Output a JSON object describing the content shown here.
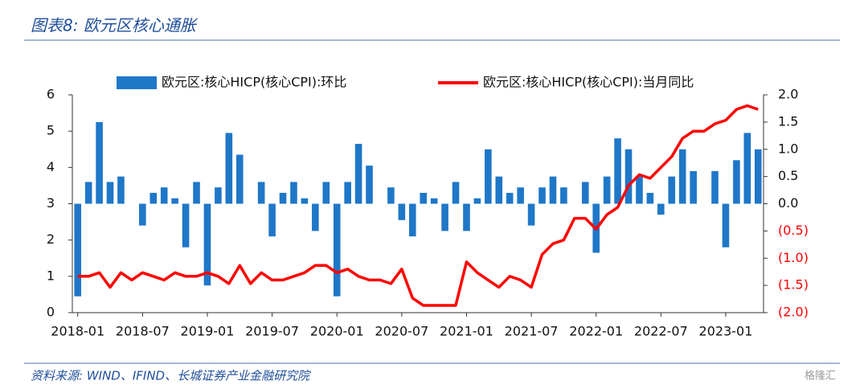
{
  "chart_data": {
    "type": "bar_line",
    "title": "图表8:  欧元区核心通胀",
    "source": "资料来源:  WIND、IFIND、长城证券产业金融研究院",
    "watermark": "格隆汇",
    "categories": [
      "2018-01",
      null,
      null,
      null,
      null,
      null,
      "2018-07",
      null,
      null,
      null,
      null,
      null,
      "2019-01",
      null,
      null,
      null,
      null,
      null,
      "2019-07",
      null,
      null,
      null,
      null,
      null,
      "2020-01",
      null,
      null,
      null,
      null,
      null,
      "2020-07",
      null,
      null,
      null,
      null,
      null,
      "2021-01",
      null,
      null,
      null,
      null,
      null,
      "2021-07",
      null,
      null,
      null,
      null,
      null,
      "2022-01",
      null,
      null,
      null,
      null,
      null,
      "2022-07",
      null,
      null,
      null,
      null,
      null,
      "2023-01",
      null,
      null,
      null
    ],
    "series": [
      {
        "name": "欧元区:核心HICP(核心CPI):环比",
        "kind": "bar",
        "axis": "y2",
        "color": "#1f77c8",
        "values": [
          -1.7,
          0.4,
          1.5,
          0.4,
          0.5,
          0.0,
          -0.4,
          0.2,
          0.3,
          0.1,
          -0.8,
          0.4,
          -1.5,
          0.3,
          1.3,
          0.9,
          0.0,
          0.4,
          -0.6,
          0.2,
          0.4,
          0.1,
          -0.5,
          0.4,
          -1.7,
          0.4,
          1.1,
          0.7,
          0.0,
          0.3,
          -0.3,
          -0.6,
          0.2,
          0.1,
          -0.5,
          0.4,
          -0.5,
          0.1,
          1.0,
          0.5,
          0.2,
          0.3,
          -0.4,
          0.3,
          0.5,
          0.3,
          0.0,
          0.4,
          -0.9,
          0.5,
          1.2,
          1.0,
          0.5,
          0.2,
          -0.2,
          0.5,
          1.0,
          0.6,
          0.0,
          0.6,
          -0.8,
          0.8,
          1.3,
          1.0
        ]
      },
      {
        "name": "欧元区:核心HICP(核心CPI):当月同比",
        "kind": "line",
        "axis": "y",
        "color": "#ff0000",
        "values": [
          1.0,
          1.0,
          1.1,
          0.7,
          1.1,
          0.9,
          1.1,
          1.0,
          0.9,
          1.1,
          1.0,
          1.0,
          1.1,
          1.0,
          0.8,
          1.3,
          0.8,
          1.1,
          0.9,
          0.9,
          1.0,
          1.1,
          1.3,
          1.3,
          1.1,
          1.2,
          1.0,
          0.9,
          0.9,
          0.8,
          1.2,
          0.4,
          0.2,
          0.2,
          0.2,
          0.2,
          1.4,
          1.1,
          0.9,
          0.7,
          1.0,
          0.9,
          0.7,
          1.6,
          1.9,
          2.0,
          2.6,
          2.6,
          2.3,
          2.7,
          2.9,
          3.5,
          3.8,
          3.7,
          4.0,
          4.3,
          4.8,
          5.0,
          5.0,
          5.2,
          5.3,
          5.6,
          5.7,
          5.6
        ]
      }
    ],
    "ylim": [
      0,
      6
    ],
    "yticks": [
      0,
      1,
      2,
      3,
      4,
      5,
      6
    ],
    "y2lim": [
      -2,
      2
    ],
    "y2ticks": [
      {
        "value": 2,
        "label": "2.0"
      },
      1.5,
      {
        "value": 1,
        "label": "1.0"
      },
      0.5,
      {
        "value": 0,
        "label": "0.0"
      },
      {
        "value": -0.5,
        "label": "(0.5)"
      },
      {
        "value": -1,
        "label": "(1.0)"
      },
      {
        "value": -1.5,
        "label": "(1.5)"
      },
      {
        "value": -2,
        "label": "(2.0)"
      }
    ],
    "negative_tick_color": "#ff0000",
    "grid": false,
    "legend": "top"
  }
}
